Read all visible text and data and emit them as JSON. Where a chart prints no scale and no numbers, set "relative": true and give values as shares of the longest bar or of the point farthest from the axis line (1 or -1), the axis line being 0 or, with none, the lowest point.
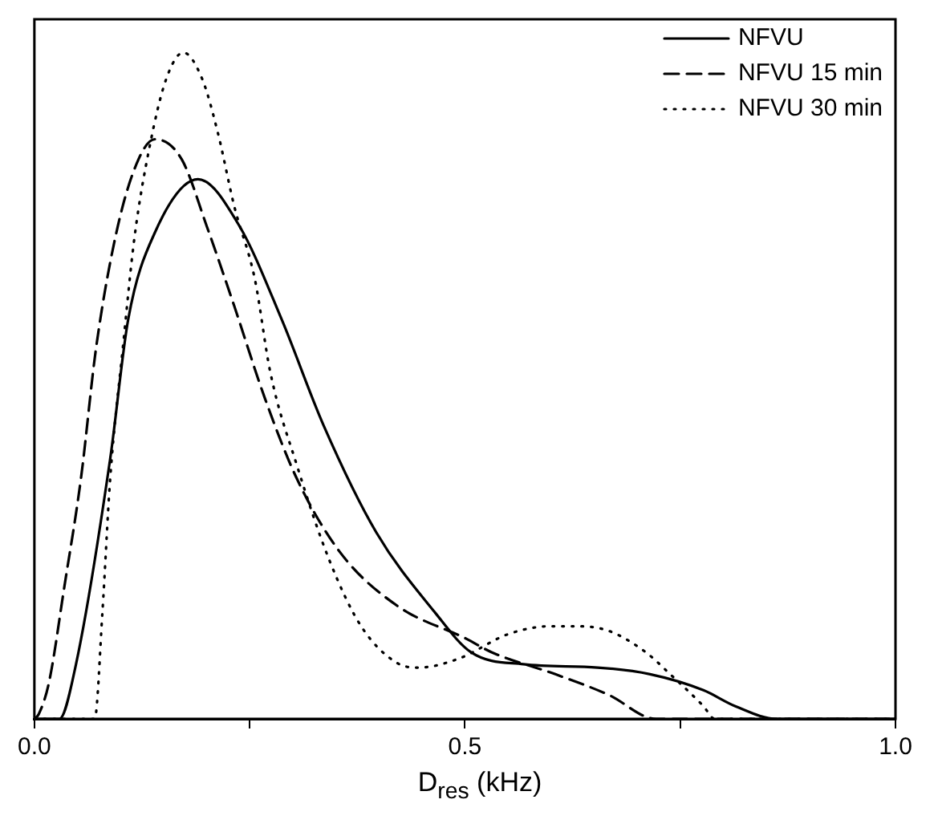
{
  "chart_data": {
    "type": "line",
    "xlabel": "D$_{res}$ (kHz)",
    "relative": true,
    "xlim": [
      0,
      1.0
    ],
    "xticks": [
      {
        "value": 0,
        "label": "0.0"
      },
      {
        "value": 0.25,
        "label": null
      },
      {
        "value": 0.5,
        "label": "0.5"
      },
      {
        "value": 0.75,
        "label": null
      },
      {
        "value": 1.0,
        "label": "1.0"
      }
    ],
    "grid": false,
    "legend": "top right",
    "marker": "none",
    "tick_labels": "x",
    "series": [
      {
        "name": "NFVU",
        "color": "#000000",
        "line_style": "solid",
        "x": [
          0,
          0.029,
          0.048,
          0.088,
          0.109,
          0.14,
          0.19,
          0.238,
          0.287,
          0.336,
          0.397,
          0.465,
          0.507,
          0.568,
          0.654,
          0.715,
          0.777,
          0.814,
          0.862,
          1.0
        ],
        "values": [
          0,
          0,
          0.08,
          0.39,
          0.6,
          0.73,
          0.81,
          0.74,
          0.6,
          0.44,
          0.28,
          0.16,
          0.1,
          0.082,
          0.077,
          0.067,
          0.043,
          0.019,
          0,
          0
        ]
      },
      {
        "name": "NFVU 15 min",
        "color": "#000000",
        "line_style": "dashed",
        "x": [
          0,
          0.005,
          0.017,
          0.035,
          0.054,
          0.072,
          0.097,
          0.121,
          0.14,
          0.171,
          0.2,
          0.232,
          0.268,
          0.305,
          0.355,
          0.421,
          0.502,
          0.531,
          0.605,
          0.667,
          0.722,
          1.0
        ],
        "values": [
          0,
          0.007,
          0.055,
          0.2,
          0.36,
          0.56,
          0.74,
          0.84,
          0.87,
          0.84,
          0.74,
          0.62,
          0.48,
          0.36,
          0.25,
          0.17,
          0.12,
          0.1,
          0.067,
          0.036,
          0,
          0
        ]
      },
      {
        "name": "NFVU 30 min",
        "color": "#000000",
        "line_style": "dotted",
        "x": [
          0,
          0.07,
          0.079,
          0.088,
          0.103,
          0.116,
          0.134,
          0.153,
          0.173,
          0.195,
          0.213,
          0.232,
          0.256,
          0.274,
          0.305,
          0.342,
          0.379,
          0.421,
          0.447,
          0.494,
          0.55,
          0.599,
          0.63,
          0.667,
          0.71,
          0.74,
          0.777,
          0.79,
          1.0
        ],
        "values": [
          0,
          0,
          0.16,
          0.36,
          0.56,
          0.72,
          0.86,
          0.96,
          1,
          0.96,
          0.88,
          0.77,
          0.66,
          0.52,
          0.38,
          0.24,
          0.14,
          0.084,
          0.077,
          0.091,
          0.127,
          0.139,
          0.139,
          0.132,
          0.1,
          0.065,
          0.019,
          0,
          0
        ]
      }
    ]
  }
}
